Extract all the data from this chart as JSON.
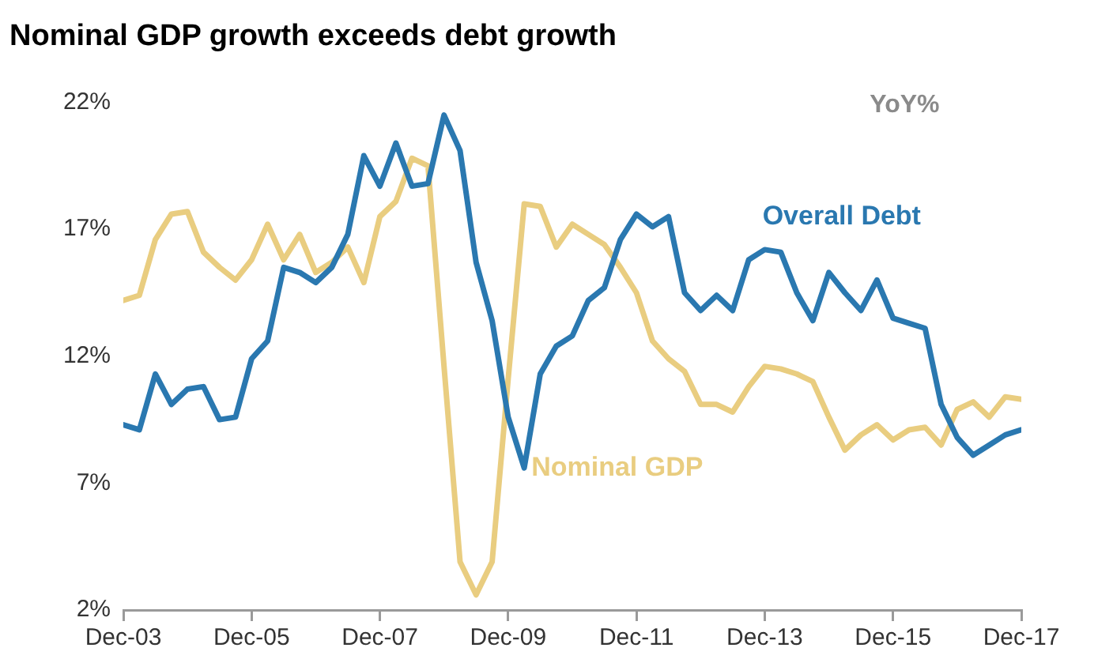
{
  "chart_data": {
    "type": "line",
    "title": "Nominal GDP growth exceeds debt growth",
    "annotations": [
      "YoY%"
    ],
    "x": [
      "2003-12",
      "2004-03",
      "2004-06",
      "2004-09",
      "2004-12",
      "2005-03",
      "2005-06",
      "2005-09",
      "2005-12",
      "2006-03",
      "2006-06",
      "2006-09",
      "2006-12",
      "2007-03",
      "2007-06",
      "2007-09",
      "2007-12",
      "2008-03",
      "2008-06",
      "2008-09",
      "2008-12",
      "2009-03",
      "2009-06",
      "2009-09",
      "2009-12",
      "2010-03",
      "2010-06",
      "2010-09",
      "2010-12",
      "2011-03",
      "2011-06",
      "2011-09",
      "2011-12",
      "2012-03",
      "2012-06",
      "2012-09",
      "2012-12",
      "2013-03",
      "2013-06",
      "2013-09",
      "2013-12",
      "2014-03",
      "2014-06",
      "2014-09",
      "2014-12",
      "2015-03",
      "2015-06",
      "2015-09",
      "2015-12",
      "2016-03",
      "2016-06",
      "2016-09",
      "2016-12",
      "2017-03",
      "2017-06",
      "2017-09",
      "2017-12"
    ],
    "series": [
      {
        "name": "Overall Debt",
        "color": "#2a78b0",
        "values": [
          9.3,
          9.1,
          11.3,
          10.1,
          10.7,
          10.8,
          9.5,
          9.6,
          11.9,
          12.6,
          15.5,
          15.3,
          14.9,
          15.5,
          16.8,
          19.9,
          18.7,
          20.4,
          18.7,
          18.8,
          21.5,
          20.1,
          15.7,
          13.4,
          9.6,
          7.6,
          11.3,
          12.4,
          12.8,
          14.2,
          14.7,
          16.6,
          17.6,
          17.1,
          17.5,
          14.5,
          13.8,
          14.4,
          13.8,
          15.8,
          16.2,
          16.1,
          14.5,
          13.4,
          15.3,
          14.5,
          13.8,
          15.0,
          13.5,
          13.3,
          13.1,
          10.1,
          8.8,
          8.1,
          8.5,
          8.9,
          9.1
        ]
      },
      {
        "name": "Nominal GDP",
        "color": "#e9cd80",
        "values": [
          14.2,
          14.4,
          16.6,
          17.6,
          17.7,
          16.1,
          15.5,
          15.0,
          15.8,
          17.2,
          15.8,
          16.8,
          15.3,
          15.7,
          16.3,
          14.9,
          17.5,
          18.1,
          19.8,
          19.5,
          11.6,
          3.9,
          2.6,
          3.9,
          11.1,
          18.0,
          17.9,
          16.3,
          17.2,
          16.8,
          16.4,
          15.5,
          14.5,
          12.6,
          11.9,
          11.4,
          10.1,
          10.1,
          9.8,
          10.8,
          11.6,
          11.5,
          11.3,
          11.0,
          9.6,
          8.3,
          8.9,
          9.3,
          8.7,
          9.1,
          9.2,
          8.5,
          9.9,
          10.2,
          9.6,
          10.4,
          10.3
        ]
      }
    ],
    "xlim": [
      "2003-12",
      "2017-12"
    ],
    "xticks": [
      {
        "value": "2003-12",
        "label": "Dec-03"
      },
      {
        "value": "2005-12",
        "label": "Dec-05"
      },
      {
        "value": "2007-12",
        "label": "Dec-07"
      },
      {
        "value": "2009-12",
        "label": "Dec-09"
      },
      {
        "value": "2011-12",
        "label": "Dec-11"
      },
      {
        "value": "2013-12",
        "label": "Dec-13"
      },
      {
        "value": "2015-12",
        "label": "Dec-15"
      },
      {
        "value": "2017-12",
        "label": "Dec-17"
      }
    ],
    "ylim": [
      2,
      22
    ],
    "yticks": [
      {
        "value": 2,
        "label": "2%"
      },
      {
        "value": 7,
        "label": "7%"
      },
      {
        "value": 12,
        "label": "12%"
      },
      {
        "value": 17,
        "label": "17%"
      },
      {
        "value": 22,
        "label": "22%"
      }
    ],
    "grid": false,
    "legend": false,
    "marker": "none",
    "line_style": "solid"
  }
}
